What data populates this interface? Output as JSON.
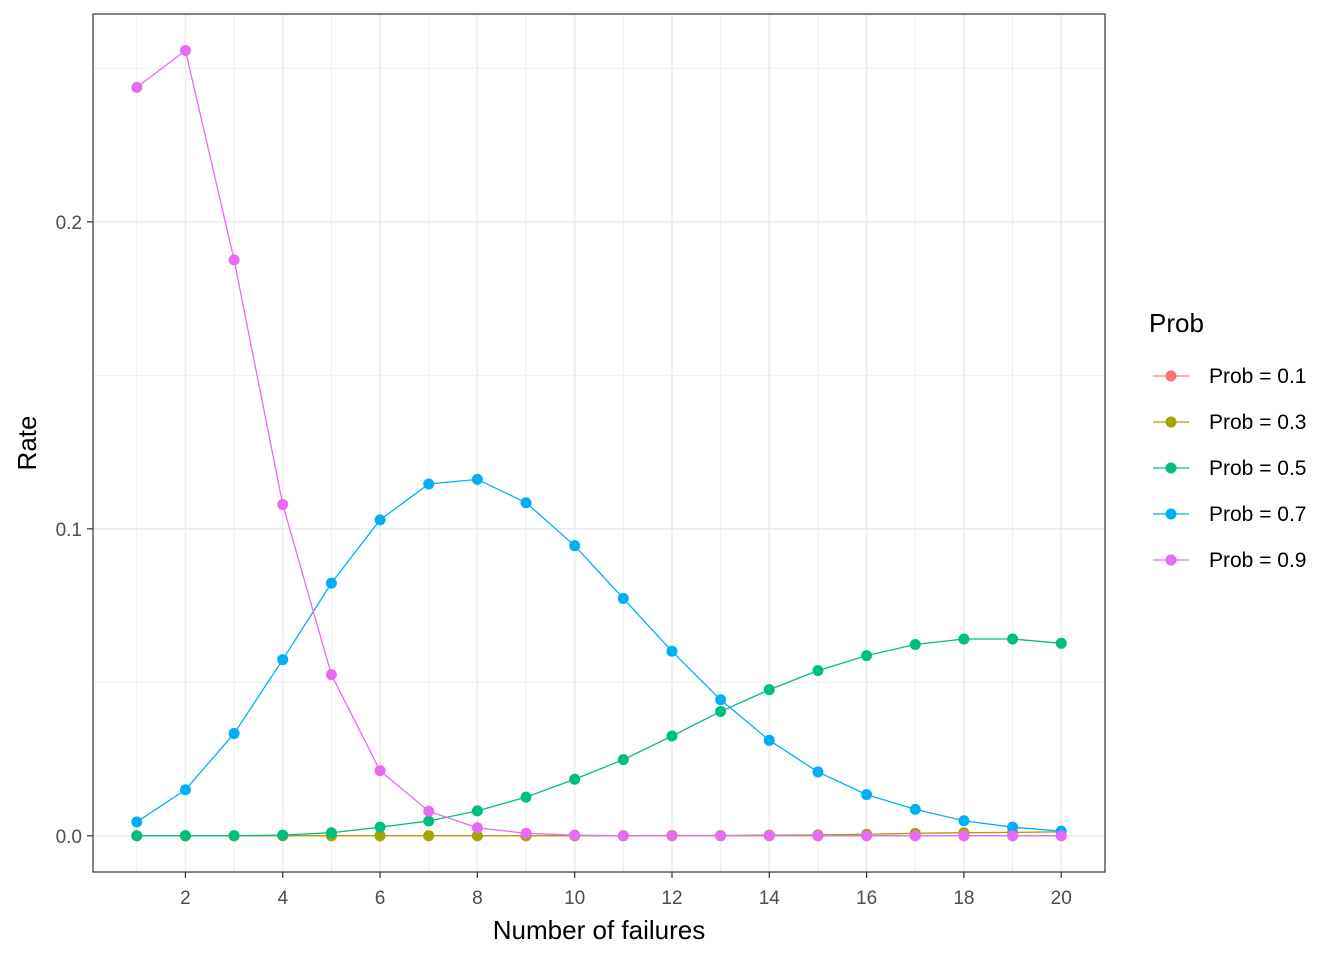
{
  "chart_data": {
    "type": "line",
    "xlabel": "Number of failures",
    "ylabel": "Rate",
    "xlim": [
      0.1,
      20.9
    ],
    "ylim": [
      -0.0118,
      0.2677
    ],
    "x_ticks": [
      2,
      4,
      6,
      8,
      10,
      12,
      14,
      16,
      18,
      20
    ],
    "x_tick_labels": [
      "2",
      "4",
      "6",
      "8",
      "10",
      "12",
      "14",
      "16",
      "18",
      "20"
    ],
    "y_ticks": [
      0.0,
      0.1,
      0.2
    ],
    "y_tick_labels": [
      "0.0",
      "0.1",
      "0.2"
    ],
    "grid": true,
    "markers": true,
    "legend": {
      "title": "Prob",
      "position": "right"
    },
    "x": [
      1,
      2,
      3,
      4,
      5,
      6,
      7,
      8,
      9,
      10,
      11,
      12,
      13,
      14,
      15,
      16,
      17,
      18,
      20,
      19
    ],
    "series": [
      {
        "name": "Prob = 0.1",
        "color": "#F8766D",
        "values": [
          0,
          0,
          0,
          0,
          0,
          0,
          0,
          0,
          0,
          0,
          0,
          0,
          0,
          0,
          0,
          0,
          0,
          0,
          0,
          0
        ]
      },
      {
        "name": "Prob = 0.3",
        "color": "#A3A500",
        "values": [
          0,
          0,
          0,
          0,
          0,
          0,
          0,
          0,
          0,
          0,
          0,
          0.0001,
          0.0001,
          0.0002,
          0.0003,
          0.0005,
          0.0008,
          0.001,
          0.0013,
          0.0011
        ]
      },
      {
        "name": "Prob = 0.5",
        "color": "#00BF7D",
        "values": [
          0,
          0,
          0,
          0.0002,
          0.001,
          0.0028,
          0.0048,
          0.0081,
          0.0126,
          0.0184,
          0.0248,
          0.0325,
          0.0405,
          0.0476,
          0.0538,
          0.0587,
          0.0623,
          0.0641,
          0.0627,
          0.0641
        ]
      },
      {
        "name": "Prob = 0.7",
        "color": "#00B0F6",
        "values": [
          0.0045,
          0.015,
          0.0333,
          0.0574,
          0.0823,
          0.1029,
          0.1146,
          0.1161,
          0.1085,
          0.0945,
          0.0773,
          0.0601,
          0.0443,
          0.0311,
          0.0208,
          0.0134,
          0.0086,
          0.0049,
          0.0015,
          0.0028
        ]
      },
      {
        "name": "Prob = 0.9",
        "color": "#E76BF3",
        "values": [
          0.2438,
          0.2558,
          0.1876,
          0.1079,
          0.0525,
          0.0212,
          0.008,
          0.0026,
          0.0008,
          0.0002,
          0,
          0,
          0,
          0,
          0,
          0,
          0,
          0,
          0,
          0
        ]
      }
    ]
  }
}
